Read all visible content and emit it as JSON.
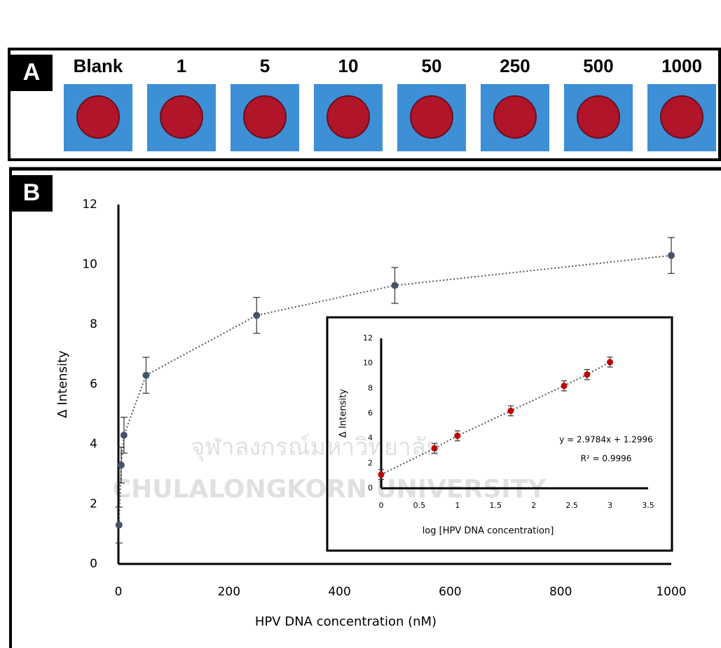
{
  "panel_a": {
    "label": "A",
    "samples": [
      "Blank",
      "1",
      "5",
      "10",
      "50",
      "250",
      "500",
      "1000"
    ]
  },
  "panel_b": {
    "label": "B"
  },
  "watermark": [
    "จุฬาลงกรณ์มหาวิทยาลัย",
    "CHULALONGKORN UNIVERSITY"
  ],
  "chart_data": [
    {
      "type": "scatter",
      "x_label": "HPV DNA concentration (nM)",
      "y_label": "Δ Intensity",
      "x": [
        1,
        5,
        10,
        50,
        250,
        500,
        1000
      ],
      "values": [
        1.3,
        3.3,
        4.3,
        6.3,
        8.3,
        9.3,
        10.3
      ],
      "errors": [
        0.6,
        0.6,
        0.6,
        0.6,
        0.6,
        0.6,
        0.6
      ],
      "color": "#44546a",
      "xlim": [
        0,
        1000
      ],
      "xticks": [
        0,
        200,
        400,
        600,
        800,
        1000
      ],
      "ylim": [
        0,
        12
      ],
      "yticks": [
        0,
        2,
        4,
        6,
        8,
        10,
        12
      ]
    },
    {
      "type": "scatter",
      "x_label": "log [HPV DNA concentration]",
      "y_label": "Δ Intensity",
      "x": [
        0,
        0.699,
        1,
        1.699,
        2.398,
        2.699,
        3
      ],
      "values": [
        1.1,
        3.2,
        4.2,
        6.2,
        8.2,
        9.1,
        10.1
      ],
      "errors": [
        0.4,
        0.4,
        0.4,
        0.4,
        0.4,
        0.4,
        0.4
      ],
      "color": "#c00000",
      "equation": "y = 2.9784x + 1.2996",
      "r_squared": "R² = 0.9996",
      "xlim": [
        0,
        3.5
      ],
      "xticks": [
        0,
        0.5,
        1,
        1.5,
        2,
        2.5,
        3,
        3.5
      ],
      "ylim": [
        0,
        12
      ],
      "yticks": [
        0,
        2,
        4,
        6,
        8,
        10,
        12
      ]
    }
  ]
}
